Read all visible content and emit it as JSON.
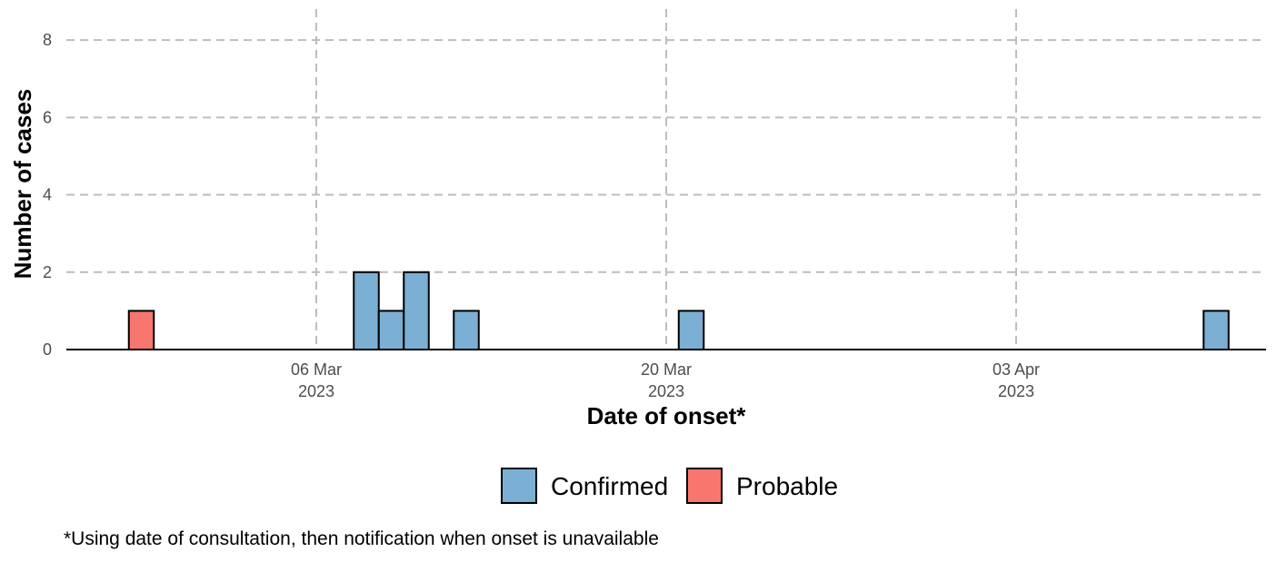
{
  "chart_data": {
    "type": "bar",
    "title": "",
    "xlabel": "Date of onset*",
    "ylabel": "Number of cases",
    "caption": "*Using date of consultation, then notification when onset is unavailable",
    "x_axis": {
      "type": "date",
      "ticks": [
        {
          "date": "2023-03-06",
          "line1": "06 Mar",
          "line2": "2023"
        },
        {
          "date": "2023-03-20",
          "line1": "20 Mar",
          "line2": "2023"
        },
        {
          "date": "2023-04-03",
          "line1": "03 Apr",
          "line2": "2023"
        }
      ],
      "range": [
        "2023-02-24",
        "2023-04-13"
      ]
    },
    "ylim": [
      0,
      8.8
    ],
    "yticks": [
      0,
      2,
      4,
      6,
      8
    ],
    "grid": true,
    "legend_position": "bottom",
    "series": [
      {
        "name": "Confirmed",
        "color": "#7BAFD4",
        "points": [
          {
            "date": "2023-03-08",
            "value": 2
          },
          {
            "date": "2023-03-09",
            "value": 1
          },
          {
            "date": "2023-03-10",
            "value": 2
          },
          {
            "date": "2023-03-12",
            "value": 1
          },
          {
            "date": "2023-03-21",
            "value": 1
          },
          {
            "date": "2023-04-11",
            "value": 1
          }
        ]
      },
      {
        "name": "Probable",
        "color": "#F8766D",
        "points": [
          {
            "date": "2023-02-27",
            "value": 1
          }
        ]
      }
    ]
  }
}
